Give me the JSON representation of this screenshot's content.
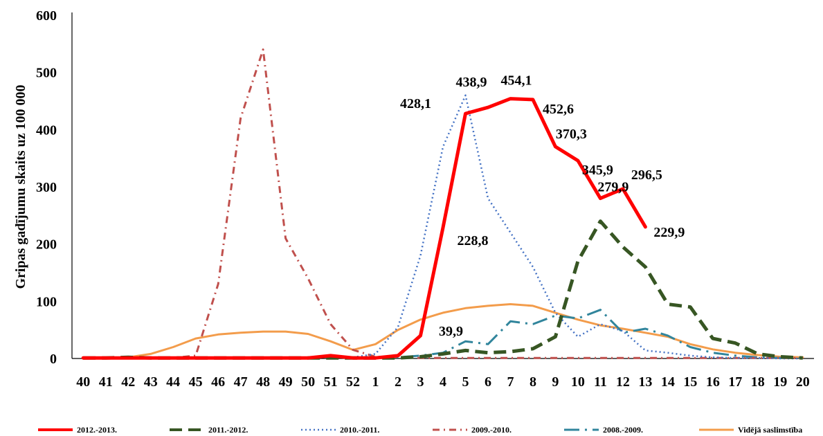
{
  "chart_data": {
    "type": "line",
    "title": "",
    "xlabel": "",
    "ylabel": "Gripas gadījumu skaits uz 100 000",
    "ylim": [
      0,
      600
    ],
    "yticks": [
      "0",
      "100",
      "200",
      "300",
      "400",
      "500",
      "600"
    ],
    "grid": false,
    "legend_position": "bottom",
    "categories": [
      "40",
      "41",
      "42",
      "43",
      "44",
      "45",
      "46",
      "47",
      "48",
      "49",
      "50",
      "51",
      "52",
      "1",
      "2",
      "3",
      "4",
      "5",
      "6",
      "7",
      "8",
      "9",
      "10",
      "11",
      "12",
      "13",
      "14",
      "15",
      "16",
      "17",
      "18",
      "19",
      "20"
    ],
    "series": [
      {
        "name": "2012.-2013.",
        "color": "#ff0000",
        "style": "solid-thick",
        "values": [
          1,
          1,
          1,
          1,
          1,
          1,
          1,
          1,
          1,
          1,
          1,
          5,
          1,
          1,
          5,
          39.9,
          228.8,
          428.1,
          438.9,
          454.1,
          452.6,
          370.3,
          345.9,
          279.9,
          296.5,
          229.9,
          null,
          null,
          null,
          null,
          null,
          null,
          null
        ]
      },
      {
        "name": "2011.-2012.",
        "color": "#375623",
        "style": "dashed-thick",
        "values": [
          1,
          1,
          2,
          1,
          1,
          1,
          1,
          1,
          1,
          1,
          1,
          1,
          1,
          1,
          1,
          3,
          8,
          14,
          10,
          12,
          17,
          38,
          170,
          240,
          195,
          160,
          95,
          90,
          35,
          27,
          8,
          3,
          1
        ]
      },
      {
        "name": "2010.-2011.",
        "color": "#4472c4",
        "style": "dotted",
        "values": [
          null,
          null,
          null,
          null,
          null,
          null,
          null,
          null,
          null,
          null,
          null,
          null,
          2,
          8,
          55,
          180,
          370,
          460,
          280,
          220,
          160,
          80,
          38,
          60,
          48,
          14,
          10,
          5,
          2,
          1,
          1,
          0,
          0
        ]
      },
      {
        "name": "2009.-2010.",
        "color": "#c0504d",
        "style": "dash-dot",
        "values": [
          1,
          1,
          1,
          1,
          1,
          5,
          130,
          420,
          540,
          210,
          140,
          60,
          15,
          3,
          2,
          1,
          1,
          1,
          1,
          1,
          1,
          1,
          1,
          1,
          1,
          1,
          1,
          1,
          1,
          1,
          1,
          1,
          1
        ]
      },
      {
        "name": "2008.-2009.",
        "color": "#31859c",
        "style": "long-dash-dot",
        "values": [
          null,
          null,
          null,
          null,
          null,
          null,
          null,
          null,
          null,
          null,
          null,
          null,
          null,
          1,
          2,
          5,
          10,
          30,
          25,
          65,
          60,
          75,
          70,
          85,
          45,
          52,
          40,
          20,
          10,
          5,
          2,
          1,
          1
        ]
      },
      {
        "name": "Vidējā saslimstība",
        "color": "#f39c4b",
        "style": "solid",
        "values": [
          1,
          0,
          2,
          8,
          20,
          35,
          42,
          45,
          47,
          47,
          43,
          30,
          15,
          25,
          50,
          68,
          80,
          88,
          92,
          95,
          92,
          80,
          68,
          58,
          52,
          45,
          38,
          25,
          16,
          10,
          6,
          3,
          2
        ]
      }
    ],
    "annotations": [
      {
        "text": "428,1",
        "x": "4",
        "y": 428.1
      },
      {
        "text": "438,9",
        "x": "5",
        "y": 438.9
      },
      {
        "text": "454,1",
        "x": "7",
        "y": 454.1
      },
      {
        "text": "452,6",
        "x": "8",
        "y": 452.6
      },
      {
        "text": "370,3",
        "x": "10",
        "y": 370.3
      },
      {
        "text": "345,9",
        "x": "10",
        "y": 345.9
      },
      {
        "text": "279,9",
        "x": "11",
        "y": 279.9
      },
      {
        "text": "296,5",
        "x": "12",
        "y": 296.5
      },
      {
        "text": "229,9",
        "x": "13",
        "y": 229.9
      },
      {
        "text": "228,8",
        "x": "5",
        "y": 228.8
      },
      {
        "text": "39,9",
        "x": "4",
        "y": 39.9
      }
    ]
  }
}
